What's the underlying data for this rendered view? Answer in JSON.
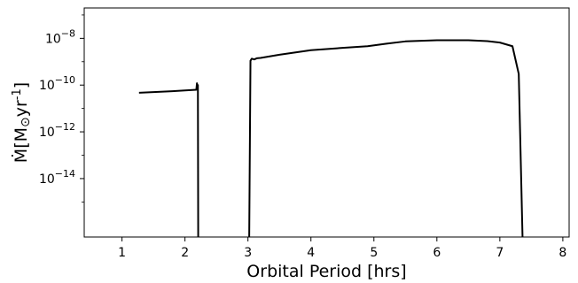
{
  "chart_data": {
    "type": "line",
    "title": "",
    "xlabel": "Orbital Period [hrs]",
    "ylabel_parts": {
      "prefix": "Ṁ[M",
      "sun_symbol": "⊙",
      "middle": "yr",
      "exponent": "-1",
      "suffix": "]"
    },
    "xlim": [
      0.4,
      8.1
    ],
    "ylim_log10": [
      -16.5,
      -6.7
    ],
    "yscale": "log",
    "grid": false,
    "x_ticks": [
      1,
      2,
      3,
      4,
      5,
      6,
      7,
      8
    ],
    "x_tick_labels": [
      "1",
      "2",
      "3",
      "4",
      "5",
      "6",
      "7",
      "8"
    ],
    "y_ticks_log10": [
      -8,
      -10,
      -12,
      -14
    ],
    "y_tick_labels": [
      {
        "base": "10",
        "exp": "−8"
      },
      {
        "base": "10",
        "exp": "−10"
      },
      {
        "base": "10",
        "exp": "−12"
      },
      {
        "base": "10",
        "exp": "−14"
      }
    ],
    "line_color": "#000000",
    "series": [
      {
        "points": [
          [
            1.27,
            4.7e-11
          ],
          [
            1.5,
            5e-11
          ],
          [
            1.8,
            5.5e-11
          ],
          [
            2.0,
            5.9e-11
          ],
          [
            2.18,
            6.3e-11
          ],
          [
            2.19,
            1.2e-10
          ],
          [
            2.2,
            8e-11
          ],
          [
            2.205,
            1e-10
          ],
          [
            2.21,
            1e-17
          ]
        ]
      },
      {
        "points": [
          [
            3.02,
            1e-17
          ],
          [
            3.04,
            1.1e-09
          ],
          [
            3.06,
            1.35e-09
          ],
          [
            3.1,
            1.25e-09
          ],
          [
            3.14,
            1.4e-09
          ],
          [
            3.2,
            1.45e-09
          ],
          [
            3.5,
            2e-09
          ],
          [
            4.0,
            3.1e-09
          ],
          [
            4.5,
            3.9e-09
          ],
          [
            4.9,
            4.6e-09
          ],
          [
            5.2,
            5.9e-09
          ],
          [
            5.5,
            7.4e-09
          ],
          [
            6.0,
            8.3e-09
          ],
          [
            6.5,
            8.3e-09
          ],
          [
            6.8,
            7.6e-09
          ],
          [
            7.0,
            6.6e-09
          ],
          [
            7.2,
            4.6e-09
          ],
          [
            7.3,
            3e-10
          ],
          [
            7.36,
            1e-17
          ]
        ]
      }
    ]
  }
}
